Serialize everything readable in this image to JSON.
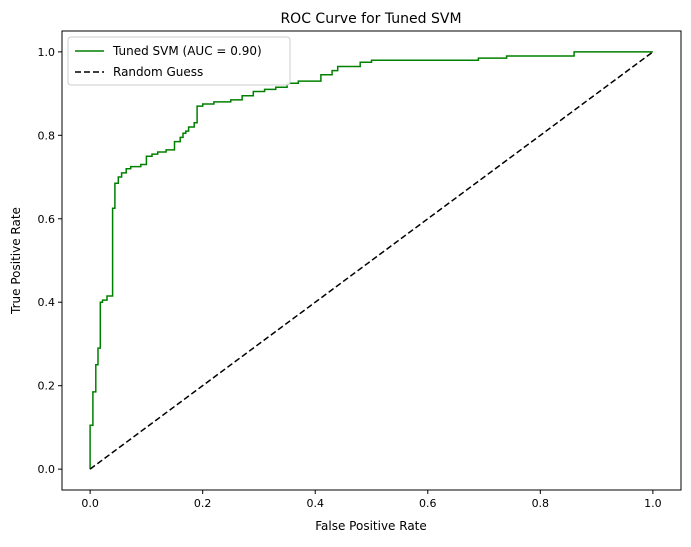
{
  "chart_data": {
    "type": "line",
    "title": "ROC Curve for Tuned SVM",
    "xlabel": "False Positive Rate",
    "ylabel": "True Positive Rate",
    "xlim": [
      -0.05,
      1.05
    ],
    "ylim": [
      -0.05,
      1.05
    ],
    "xticks": [
      0.0,
      0.2,
      0.4,
      0.6,
      0.8,
      1.0
    ],
    "yticks": [
      0.0,
      0.2,
      0.4,
      0.6,
      0.8,
      1.0
    ],
    "tick_labels": [
      "0.0",
      "0.2",
      "0.4",
      "0.6",
      "0.8",
      "1.0"
    ],
    "grid": false,
    "legend_position": "top-left",
    "series": [
      {
        "name": "Tuned SVM (AUC = 0.90)",
        "color": "#008000",
        "style": "solid",
        "step": true,
        "x": [
          0.0,
          0.0,
          0.005,
          0.005,
          0.01,
          0.01,
          0.014,
          0.014,
          0.018,
          0.018,
          0.022,
          0.022,
          0.03,
          0.03,
          0.04,
          0.04,
          0.044,
          0.044,
          0.05,
          0.05,
          0.056,
          0.056,
          0.064,
          0.064,
          0.072,
          0.072,
          0.09,
          0.09,
          0.1,
          0.1,
          0.11,
          0.11,
          0.12,
          0.12,
          0.135,
          0.135,
          0.15,
          0.15,
          0.16,
          0.16,
          0.165,
          0.165,
          0.17,
          0.17,
          0.175,
          0.175,
          0.185,
          0.185,
          0.19,
          0.19,
          0.2,
          0.2,
          0.22,
          0.22,
          0.25,
          0.25,
          0.27,
          0.27,
          0.29,
          0.29,
          0.31,
          0.31,
          0.33,
          0.33,
          0.35,
          0.35,
          0.37,
          0.37,
          0.41,
          0.41,
          0.43,
          0.43,
          0.44,
          0.44,
          0.48,
          0.48,
          0.5,
          0.5,
          0.69,
          0.69,
          0.74,
          0.74,
          0.86,
          0.86,
          1.0
        ],
        "y": [
          0.0,
          0.105,
          0.105,
          0.185,
          0.185,
          0.25,
          0.25,
          0.29,
          0.29,
          0.4,
          0.4,
          0.405,
          0.405,
          0.415,
          0.415,
          0.625,
          0.625,
          0.685,
          0.685,
          0.7,
          0.7,
          0.71,
          0.71,
          0.72,
          0.72,
          0.725,
          0.725,
          0.73,
          0.73,
          0.75,
          0.75,
          0.755,
          0.755,
          0.76,
          0.76,
          0.765,
          0.765,
          0.785,
          0.785,
          0.795,
          0.795,
          0.805,
          0.805,
          0.81,
          0.81,
          0.82,
          0.82,
          0.83,
          0.83,
          0.87,
          0.87,
          0.875,
          0.875,
          0.88,
          0.88,
          0.885,
          0.885,
          0.895,
          0.895,
          0.905,
          0.905,
          0.91,
          0.91,
          0.915,
          0.915,
          0.925,
          0.925,
          0.93,
          0.93,
          0.945,
          0.945,
          0.955,
          0.955,
          0.965,
          0.965,
          0.975,
          0.975,
          0.98,
          0.98,
          0.985,
          0.985,
          0.99,
          0.99,
          1.0,
          1.0
        ]
      },
      {
        "name": "Random Guess",
        "color": "#000000",
        "style": "dashed",
        "step": false,
        "x": [
          0.0,
          1.0
        ],
        "y": [
          0.0,
          1.0
        ]
      }
    ]
  }
}
